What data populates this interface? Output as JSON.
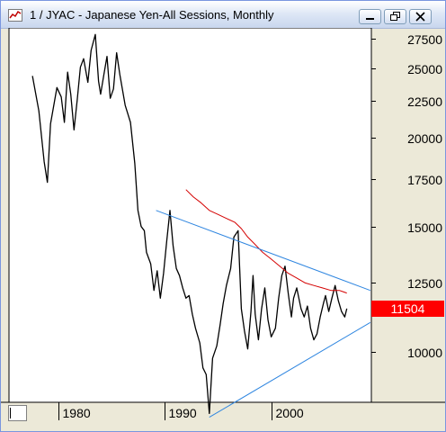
{
  "window": {
    "title": "1 / JYAC - Japanese Yen-All Sessions, Monthly"
  },
  "price_marker": {
    "value": "11504",
    "color": "#ff0000"
  },
  "chart_data": {
    "type": "line",
    "title": "1 / JYAC - Japanese Yen-All Sessions, Monthly",
    "xlabel": "",
    "ylabel": "",
    "x_tick_labels": [
      "1980",
      "1990",
      "2000"
    ],
    "y_tick_labels": [
      "27500",
      "25000",
      "22500",
      "20000",
      "17500",
      "15000",
      "12500",
      "10000"
    ],
    "y_ticks": [
      27500,
      25000,
      22500,
      20000,
      17500,
      15000,
      12500,
      10000
    ],
    "ylim": [
      8500,
      28500
    ],
    "ylog": true,
    "xlim": [
      1975.4,
      2009.4
    ],
    "grid": false,
    "series": [
      {
        "role": "price",
        "color": "#000000",
        "x": [
          1977.6,
          1978.2,
          1978.7,
          1979.0,
          1979.3,
          1979.9,
          1980.3,
          1980.6,
          1980.9,
          1981.2,
          1981.5,
          1981.8,
          1982.1,
          1982.4,
          1982.8,
          1983.1,
          1983.5,
          1983.8,
          1984.0,
          1984.3,
          1984.6,
          1984.9,
          1985.2,
          1985.5,
          1985.8,
          1986.3,
          1986.8,
          1987.2,
          1987.5,
          1987.8,
          1988.1,
          1988.3,
          1988.7,
          1989.0,
          1989.3,
          1989.6,
          1989.9,
          1990.2,
          1990.5,
          1990.8,
          1991.1,
          1991.4,
          1991.7,
          1992.0,
          1992.3,
          1992.6,
          1992.9,
          1993.3,
          1993.6,
          1993.9,
          1994.2,
          1994.5,
          1994.9,
          1995.2,
          1995.5,
          1995.8,
          1996.2,
          1996.5,
          1996.9,
          1997.2,
          1997.5,
          1997.8,
          1998.1,
          1998.3,
          1998.5,
          1998.8,
          1999.1,
          1999.4,
          1999.7,
          2000.0,
          2000.4,
          2000.7,
          2001.0,
          2001.3,
          2001.6,
          2001.9,
          2002.1,
          2002.4,
          2002.8,
          2003.1,
          2003.4,
          2003.7,
          2004.0,
          2004.3,
          2004.6,
          2004.9,
          2005.1,
          2005.4,
          2005.7,
          2006.0,
          2006.3,
          2006.6,
          2006.9,
          2007.1
        ],
        "y": [
          24400,
          21800,
          18500,
          17300,
          20900,
          23500,
          22800,
          21000,
          24700,
          23000,
          20500,
          22600,
          25100,
          25800,
          23900,
          26500,
          27900,
          24000,
          23000,
          24500,
          26000,
          22700,
          23400,
          26300,
          24500,
          22200,
          21000,
          18400,
          15800,
          15000,
          14800,
          13800,
          13300,
          12200,
          13000,
          11900,
          12900,
          14300,
          15800,
          14100,
          13100,
          12800,
          12300,
          11900,
          12000,
          11300,
          10800,
          10300,
          9500,
          9300,
          8200,
          9800,
          10200,
          10900,
          11700,
          12400,
          13100,
          14500,
          14800,
          11500,
          10700,
          10100,
          11400,
          12800,
          11300,
          10400,
          11500,
          12300,
          11100,
          10500,
          10800,
          11900,
          12800,
          13200,
          12100,
          11200,
          11900,
          12300,
          11500,
          11200,
          11600,
          10800,
          10400,
          10600,
          11200,
          11700,
          12000,
          11400,
          11900,
          12400,
          11800,
          11400,
          11200,
          11504
        ]
      },
      {
        "role": "moving-average",
        "color": "#d40000",
        "x": [
          1992.0,
          1992.7,
          1993.4,
          1994.2,
          1995.0,
          1995.8,
          1996.6,
          1997.2,
          1997.8,
          1998.4,
          1999.2,
          2000.0,
          2000.8,
          2001.6,
          2002.4,
          2003.2,
          2004.0,
          2004.8,
          2005.6,
          2006.4,
          2007.1
        ],
        "y": [
          16900,
          16500,
          16200,
          15800,
          15600,
          15400,
          15200,
          14900,
          14500,
          14200,
          13800,
          13500,
          13200,
          12900,
          12700,
          12500,
          12400,
          12300,
          12200,
          12200,
          12100
        ]
      },
      {
        "role": "upper-trendline",
        "color": "#2f86e0",
        "x": [
          1989.2,
          2009.3
        ],
        "y": [
          15800,
          12200
        ]
      },
      {
        "role": "lower-trendline",
        "color": "#2f86e0",
        "x": [
          1994.2,
          2009.3
        ],
        "y": [
          8100,
          11000
        ]
      }
    ]
  }
}
